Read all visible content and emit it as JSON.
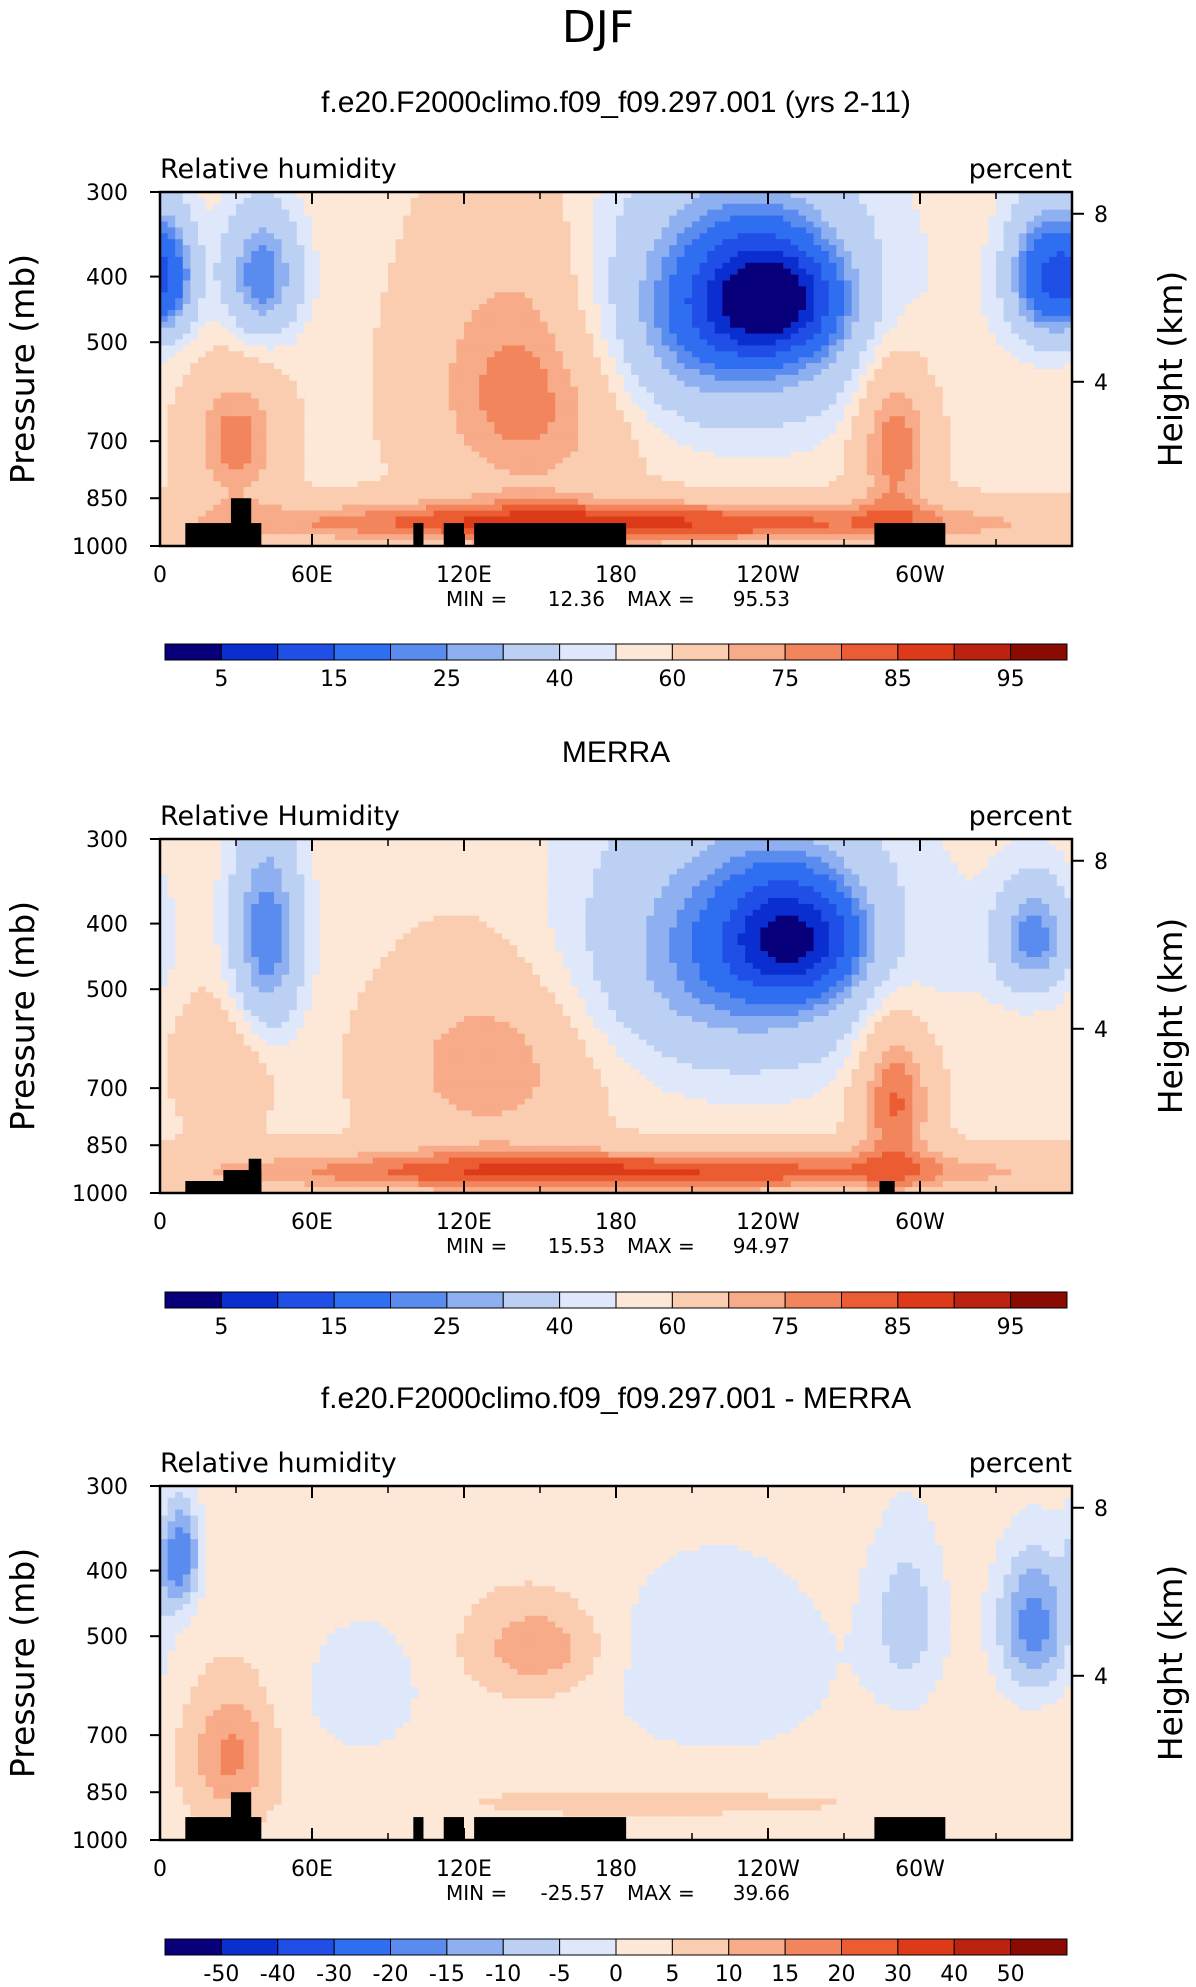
{
  "page_title": "DJF",
  "colors": {
    "blue_scale": [
      "#08007a",
      "#0a2ed0",
      "#1f4fe6",
      "#2f6ef0",
      "#5a8cf0",
      "#8fb0f0",
      "#bcd0f4",
      "#dfe8fa"
    ],
    "red_scale": [
      "#fde7d6",
      "#fbcdb0",
      "#f8ab88",
      "#f3855c",
      "#ec5c33",
      "#dd3a1a",
      "#bb220f",
      "#8a0b03"
    ],
    "land": "#000000"
  },
  "chart_data": [
    {
      "type": "contour",
      "title": "f.e20.F2000climo.f09_f09.297.001 (yrs 2-11)",
      "left_label": "Relative humidity",
      "right_label": "percent",
      "ylabel": "Pressure (mb)",
      "y2label": "Height (km)",
      "x_ticks": [
        "0",
        "60E",
        "120E",
        "180",
        "120W",
        "60W"
      ],
      "x_tick_values": [
        0,
        60,
        120,
        180,
        240,
        300
      ],
      "xlim": [
        0,
        360
      ],
      "y_ticks": [
        "300",
        "400",
        "500",
        "700",
        "850",
        "1000"
      ],
      "y_tick_values": [
        300,
        400,
        500,
        700,
        850,
        1000
      ],
      "ylim": [
        300,
        1000
      ],
      "height_ticks": [
        "8",
        "4"
      ],
      "height_tick_values": [
        8,
        4
      ],
      "stats": {
        "min_label": "MIN =",
        "min": "12.36",
        "max_label": "MAX =",
        "max": "95.53"
      },
      "colorbar": {
        "labels": [
          "5",
          "15",
          "25",
          "40",
          "60",
          "75",
          "85",
          "95"
        ],
        "levels": 16
      },
      "blobs": [
        {
          "lon": 225,
          "p": 450,
          "rx": 55,
          "rp": 190,
          "v": 25
        },
        {
          "lon": 240,
          "p": 430,
          "rx": 25,
          "rp": 80,
          "v": 12
        },
        {
          "lon": 40,
          "p": 400,
          "rx": 15,
          "rp": 90,
          "v": 30
        },
        {
          "lon": 350,
          "p": 400,
          "rx": 15,
          "rp": 90,
          "v": 20
        },
        {
          "lon": 5,
          "p": 400,
          "rx": 10,
          "rp": 80,
          "v": 35
        },
        {
          "lon": 145,
          "p": 580,
          "rx": 40,
          "rp": 260,
          "v": 80
        },
        {
          "lon": 30,
          "p": 700,
          "rx": 18,
          "rp": 160,
          "v": 78
        },
        {
          "lon": 290,
          "p": 700,
          "rx": 15,
          "rp": 200,
          "v": 80
        },
        {
          "lon": 180,
          "p": 925,
          "rx": 170,
          "rp": 70,
          "v": 86
        }
      ],
      "base": 58,
      "land": [
        [
          10,
          40,
          925
        ],
        [
          28,
          36,
          850
        ],
        [
          100,
          104,
          925
        ],
        [
          112,
          120,
          925
        ],
        [
          124,
          184,
          925
        ],
        [
          282,
          310,
          925
        ]
      ]
    },
    {
      "type": "contour",
      "title": "MERRA",
      "left_label": "Relative Humidity",
      "right_label": "percent",
      "ylabel": "Pressure (mb)",
      "y2label": "Height (km)",
      "x_ticks": [
        "0",
        "60E",
        "120E",
        "180",
        "120W",
        "60W"
      ],
      "x_tick_values": [
        0,
        60,
        120,
        180,
        240,
        300
      ],
      "xlim": [
        0,
        360
      ],
      "y_ticks": [
        "300",
        "400",
        "500",
        "700",
        "850",
        "1000"
      ],
      "y_tick_values": [
        300,
        400,
        500,
        700,
        850,
        1000
      ],
      "ylim": [
        300,
        1000
      ],
      "height_ticks": [
        "8",
        "4"
      ],
      "height_tick_values": [
        8,
        4
      ],
      "stats": {
        "min_label": "MIN =",
        "min": "15.53",
        "max_label": "MAX =",
        "max": "94.97"
      },
      "colorbar": {
        "labels": [
          "5",
          "15",
          "25",
          "40",
          "60",
          "75",
          "85",
          "95"
        ],
        "levels": 16
      },
      "blobs": [
        {
          "lon": 230,
          "p": 440,
          "rx": 60,
          "rp": 200,
          "v": 30
        },
        {
          "lon": 250,
          "p": 420,
          "rx": 25,
          "rp": 80,
          "v": 18
        },
        {
          "lon": 42,
          "p": 420,
          "rx": 14,
          "rp": 150,
          "v": 30
        },
        {
          "lon": 345,
          "p": 420,
          "rx": 15,
          "rp": 80,
          "v": 32
        },
        {
          "lon": 130,
          "p": 650,
          "rx": 40,
          "rp": 200,
          "v": 75
        },
        {
          "lon": 25,
          "p": 650,
          "rx": 18,
          "rp": 150,
          "v": 68
        },
        {
          "lon": 290,
          "p": 720,
          "rx": 15,
          "rp": 200,
          "v": 82
        },
        {
          "lon": 180,
          "p": 930,
          "rx": 170,
          "rp": 70,
          "v": 86
        }
      ],
      "base": 58,
      "land": [
        [
          10,
          40,
          960
        ],
        [
          25,
          40,
          925
        ],
        [
          35,
          40,
          890
        ],
        [
          284,
          290,
          960
        ]
      ]
    },
    {
      "type": "contour",
      "title": "f.e20.F2000climo.f09_f09.297.001 - MERRA",
      "left_label": "Relative humidity",
      "right_label": "percent",
      "ylabel": "Pressure (mb)",
      "y2label": "Height (km)",
      "x_ticks": [
        "0",
        "60E",
        "120E",
        "180",
        "120W",
        "60W"
      ],
      "x_tick_values": [
        0,
        60,
        120,
        180,
        240,
        300
      ],
      "xlim": [
        0,
        360
      ],
      "y_ticks": [
        "300",
        "400",
        "500",
        "700",
        "850",
        "1000"
      ],
      "y_tick_values": [
        300,
        400,
        500,
        700,
        850,
        1000
      ],
      "ylim": [
        300,
        1000
      ],
      "height_ticks": [
        "8",
        "4"
      ],
      "height_tick_values": [
        8,
        4
      ],
      "stats": {
        "min_label": "MIN =",
        "min": "-25.57",
        "max_label": "MAX =",
        "max": "39.66"
      },
      "colorbar": {
        "labels": [
          "-50",
          "-40",
          "-30",
          "-20",
          "-15",
          "-10",
          "-5",
          "0",
          "5",
          "10",
          "15",
          "20",
          "30",
          "40",
          "50"
        ],
        "levels": 16
      },
      "blobs": [
        {
          "lon": 8,
          "p": 380,
          "rx": 8,
          "rp": 70,
          "v": -22
        },
        {
          "lon": 345,
          "p": 480,
          "rx": 15,
          "rp": 120,
          "v": -20
        },
        {
          "lon": 295,
          "p": 470,
          "rx": 15,
          "rp": 150,
          "v": -10
        },
        {
          "lon": 220,
          "p": 550,
          "rx": 50,
          "rp": 200,
          "v": -7
        },
        {
          "lon": 80,
          "p": 600,
          "rx": 25,
          "rp": 150,
          "v": -6
        },
        {
          "lon": 150,
          "p": 520,
          "rx": 25,
          "rp": 80,
          "v": 12
        },
        {
          "lon": 28,
          "p": 750,
          "rx": 15,
          "rp": 150,
          "v": 14
        },
        {
          "lon": 200,
          "p": 880,
          "rx": 90,
          "rp": 50,
          "v": 4
        }
      ],
      "base": 1,
      "land": [
        [
          10,
          40,
          925
        ],
        [
          28,
          36,
          850
        ],
        [
          100,
          104,
          925
        ],
        [
          112,
          120,
          925
        ],
        [
          124,
          184,
          925
        ],
        [
          282,
          310,
          925
        ]
      ]
    }
  ]
}
